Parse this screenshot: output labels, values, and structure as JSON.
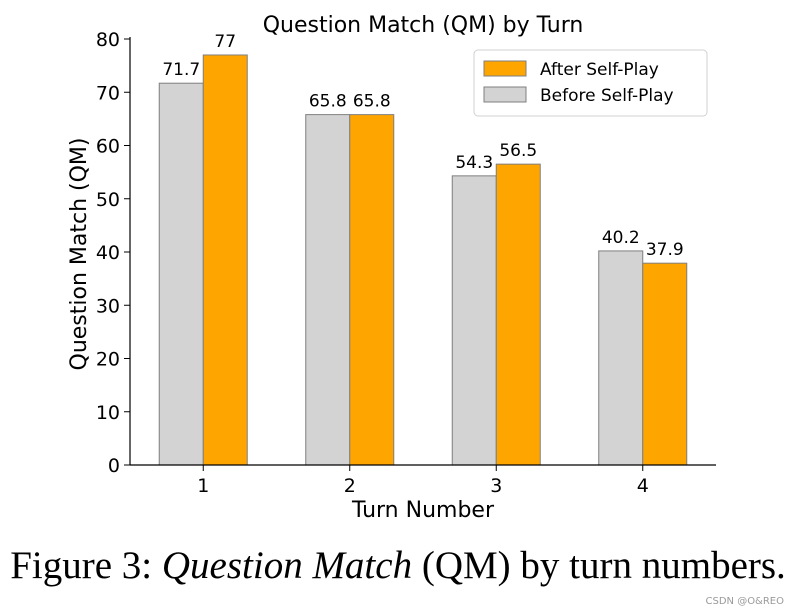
{
  "chart_data": {
    "type": "bar",
    "title": "Question Match (QM) by Turn",
    "xlabel": "Turn Number",
    "ylabel": "Question Match (QM)",
    "categories": [
      "1",
      "2",
      "3",
      "4"
    ],
    "ylim": [
      0,
      80
    ],
    "yticks": [
      0,
      10,
      20,
      30,
      40,
      50,
      60,
      70,
      80
    ],
    "series": [
      {
        "name": "Before Self-Play",
        "values": [
          71.7,
          65.8,
          54.3,
          40.2
        ],
        "labels": [
          "71.7",
          "65.8",
          "54.3",
          "40.2"
        ],
        "color": "#d3d3d3"
      },
      {
        "name": "After Self-Play",
        "values": [
          77,
          65.8,
          56.5,
          37.9
        ],
        "labels": [
          "77",
          "65.8",
          "56.5",
          "37.9"
        ],
        "color": "#ffa500"
      }
    ],
    "legend": {
      "placement": "top-right",
      "order": [
        "After Self-Play",
        "Before Self-Play"
      ]
    },
    "grid": false
  },
  "caption": {
    "prefix": "Figure 3: ",
    "emphasis": "Question Match",
    "suffix": " (QM) by turn numbers."
  },
  "watermark": "CSDN @O&REO"
}
